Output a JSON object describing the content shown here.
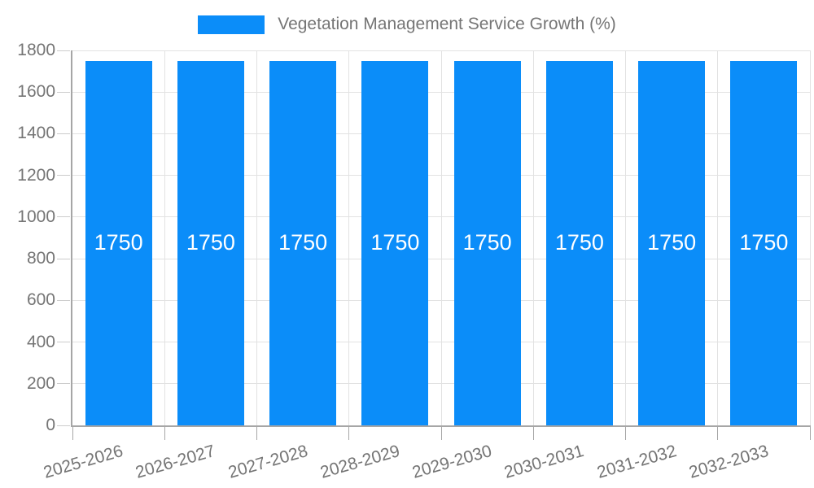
{
  "chart_data": {
    "type": "bar",
    "title": "Vegetation Management Service Growth (%)",
    "legend": {
      "label": "Vegetation Management Service Growth (%)",
      "position": "top-center"
    },
    "categories": [
      "2025-2026",
      "2026-2027",
      "2027-2028",
      "2028-2029",
      "2029-2030",
      "2030-2031",
      "2031-2032",
      "2032-2033"
    ],
    "values": [
      1750,
      1750,
      1750,
      1750,
      1750,
      1750,
      1750,
      1750
    ],
    "bar_labels": [
      "1750",
      "1750",
      "1750",
      "1750",
      "1750",
      "1750",
      "1750",
      "1750"
    ],
    "xlabel": "",
    "ylabel": "",
    "ylim": [
      0,
      1800
    ],
    "ytick_step": 200,
    "yticks": [
      0,
      200,
      400,
      600,
      800,
      1000,
      1200,
      1400,
      1600,
      1800
    ],
    "grid": true,
    "x_label_rotation_deg": -16
  },
  "colors": {
    "bar": "#0b8df9",
    "bar_label": "#ffffff",
    "axis_text": "#757575",
    "axis_line": "#a6a6a6",
    "gridline": "#e2e2e2",
    "y_tick": "#cccccc",
    "background": "#ffffff"
  }
}
